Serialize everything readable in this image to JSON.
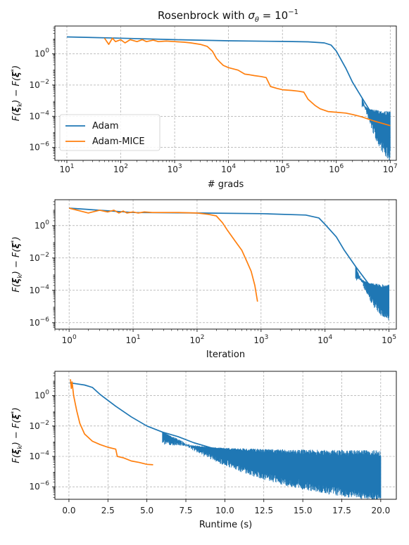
{
  "figure": {
    "title": "Rosenbrock with σ_θ = 10^{-1}",
    "colors": {
      "Adam": "#1f77b4",
      "Adam-MICE": "#ff7f0e"
    }
  },
  "chart_data": [
    {
      "type": "line",
      "title": "Rosenbrock with σ_θ = 10^{-1}",
      "xlabel": "# grads",
      "ylabel": "F(ξ_k) − F(ξ*)",
      "xscale": "log",
      "yscale": "log",
      "xlim": [
        6,
        13000000
      ],
      "ylim": [
        1.5e-07,
        60
      ],
      "xticks": [
        10,
        100,
        1000,
        10000,
        100000,
        1000000,
        10000000
      ],
      "xtick_labels": [
        "10^1",
        "10^2",
        "10^3",
        "10^4",
        "10^5",
        "10^6",
        "10^7"
      ],
      "yticks": [
        1e-06,
        0.0001,
        0.01,
        1
      ],
      "ytick_labels": [
        "10^-6",
        "10^-4",
        "10^-2",
        "10^0"
      ],
      "grid": true,
      "legend": {
        "placement": "lower-left",
        "entries": [
          "Adam",
          "Adam-MICE"
        ]
      },
      "series": [
        {
          "name": "Adam",
          "color": "#1f77b4",
          "x": [
            10,
            100,
            1000,
            10000,
            100000,
            300000,
            600000,
            800000,
            1000000,
            1500000,
            2000000,
            3000000,
            4000000,
            5000000,
            7000000,
            10000000
          ],
          "y": [
            12,
            10,
            8,
            6.8,
            6.2,
            5.8,
            5,
            3.6,
            1.5,
            0.12,
            0.015,
            0.0015,
            0.0003,
            0.0001,
            2e-05,
            4e-06
          ],
          "band": {
            "x_from": 3000000,
            "x_to": 10000000,
            "upper": 0.0003,
            "lower_end": 1.2e-07
          }
        },
        {
          "name": "Adam-MICE",
          "color": "#ff7f0e",
          "x": [
            50,
            60,
            70,
            80,
            100,
            120,
            150,
            200,
            250,
            300,
            400,
            500,
            700,
            1000,
            1500,
            2000,
            3000,
            4000,
            5000,
            6000,
            7000,
            8000,
            10000,
            15000,
            20000,
            25000,
            30000,
            40000,
            50000,
            60000,
            80000,
            100000,
            150000,
            200000,
            250000,
            300000,
            400000,
            500000,
            700000,
            1000000,
            1500000,
            2000000,
            3000000,
            5000000,
            10000000
          ],
          "y": [
            10,
            4,
            10,
            6,
            8,
            5,
            8,
            6,
            8,
            6,
            7.5,
            6,
            6.5,
            6,
            5.5,
            5,
            4,
            3,
            1.5,
            0.5,
            0.28,
            0.18,
            0.13,
            0.09,
            0.05,
            0.045,
            0.04,
            0.035,
            0.03,
            0.008,
            0.006,
            0.005,
            0.0045,
            0.004,
            0.0035,
            0.0012,
            0.0005,
            0.0003,
            0.0002,
            0.00018,
            0.00016,
            0.00013,
            9e-05,
            5e-05,
            2.5e-05
          ]
        }
      ]
    },
    {
      "type": "line",
      "xlabel": "Iteration",
      "ylabel": "F(ξ_k) − F(ξ*)",
      "xscale": "log",
      "yscale": "log",
      "xlim": [
        0.6,
        130000
      ],
      "ylim": [
        4e-07,
        40
      ],
      "xticks": [
        1,
        10,
        100,
        1000,
        10000,
        100000
      ],
      "xtick_labels": [
        "10^0",
        "10^1",
        "10^2",
        "10^3",
        "10^4",
        "10^5"
      ],
      "yticks": [
        1e-06,
        0.0001,
        0.01,
        1
      ],
      "ytick_labels": [
        "10^-6",
        "10^-4",
        "10^-2",
        "10^0"
      ],
      "grid": true,
      "series": [
        {
          "name": "Adam",
          "color": "#1f77b4",
          "x": [
            1,
            10,
            100,
            1000,
            5000,
            8000,
            10000,
            15000,
            20000,
            30000,
            50000,
            100000
          ],
          "y": [
            12,
            6.5,
            6,
            5.5,
            4.5,
            3,
            1.2,
            0.2,
            0.03,
            0.003,
            0.0002,
            8e-06
          ],
          "band": {
            "x_from": 30000,
            "x_to": 100000,
            "upper": 0.0003,
            "lower_end": 1.2e-06
          }
        },
        {
          "name": "Adam-MICE",
          "color": "#ff7f0e",
          "x": [
            1,
            1.5,
            2,
            3,
            4,
            5,
            6,
            7,
            8,
            10,
            12,
            15,
            20,
            30,
            50,
            100,
            150,
            200,
            250,
            300,
            400,
            500,
            600,
            700,
            800,
            880
          ],
          "y": [
            12,
            8,
            6,
            9,
            7,
            9,
            6,
            8,
            6,
            7,
            6,
            7,
            6.5,
            6.5,
            6.5,
            6,
            5,
            4,
            1.5,
            0.5,
            0.1,
            0.03,
            0.006,
            0.0015,
            0.0002,
            2e-05
          ]
        }
      ]
    },
    {
      "type": "line",
      "xlabel": "Runtime (s)",
      "ylabel": "F(ξ_k) − F(ξ*)",
      "xscale": "linear",
      "yscale": "log",
      "xlim": [
        -0.9,
        21
      ],
      "ylim": [
        1.5e-07,
        40
      ],
      "xticks": [
        0,
        2.5,
        5,
        7.5,
        10,
        12.5,
        15,
        17.5,
        20
      ],
      "xtick_labels": [
        "0.0",
        "2.5",
        "5.0",
        "7.5",
        "10.0",
        "12.5",
        "15.0",
        "17.5",
        "20.0"
      ],
      "yticks": [
        1e-06,
        0.0001,
        0.01,
        1
      ],
      "ytick_labels": [
        "10^-6",
        "10^-4",
        "10^-2",
        "10^0"
      ],
      "grid": true,
      "series": [
        {
          "name": "Adam",
          "color": "#1f77b4",
          "x": [
            0.05,
            0.5,
            1,
            1.5,
            2,
            3,
            4,
            5,
            6,
            7,
            8,
            10,
            12,
            14,
            16,
            18,
            20
          ],
          "y": [
            7,
            6,
            5,
            3.5,
            1.2,
            0.2,
            0.04,
            0.01,
            0.004,
            0.002,
            0.0008,
            0.0002,
            6e-05,
            2e-05,
            8e-06,
            3e-06,
            1.3e-06
          ],
          "band": {
            "x_from": 6,
            "x_to": 20,
            "upper": 0.0004,
            "lower_end": 1.2e-07
          }
        },
        {
          "name": "Adam-MICE",
          "color": "#ff7f0e",
          "x": [
            0.1,
            0.15,
            0.2,
            0.3,
            0.5,
            0.7,
            1,
            1.5,
            2,
            2.5,
            3,
            3.1,
            3.5,
            4,
            4.5,
            5,
            5.4
          ],
          "y": [
            12,
            3,
            8,
            1,
            0.1,
            0.015,
            0.003,
            0.001,
            0.0006,
            0.0004,
            0.0003,
            0.0001,
            8e-05,
            5e-05,
            4e-05,
            3e-05,
            2.8e-05
          ]
        }
      ]
    }
  ]
}
